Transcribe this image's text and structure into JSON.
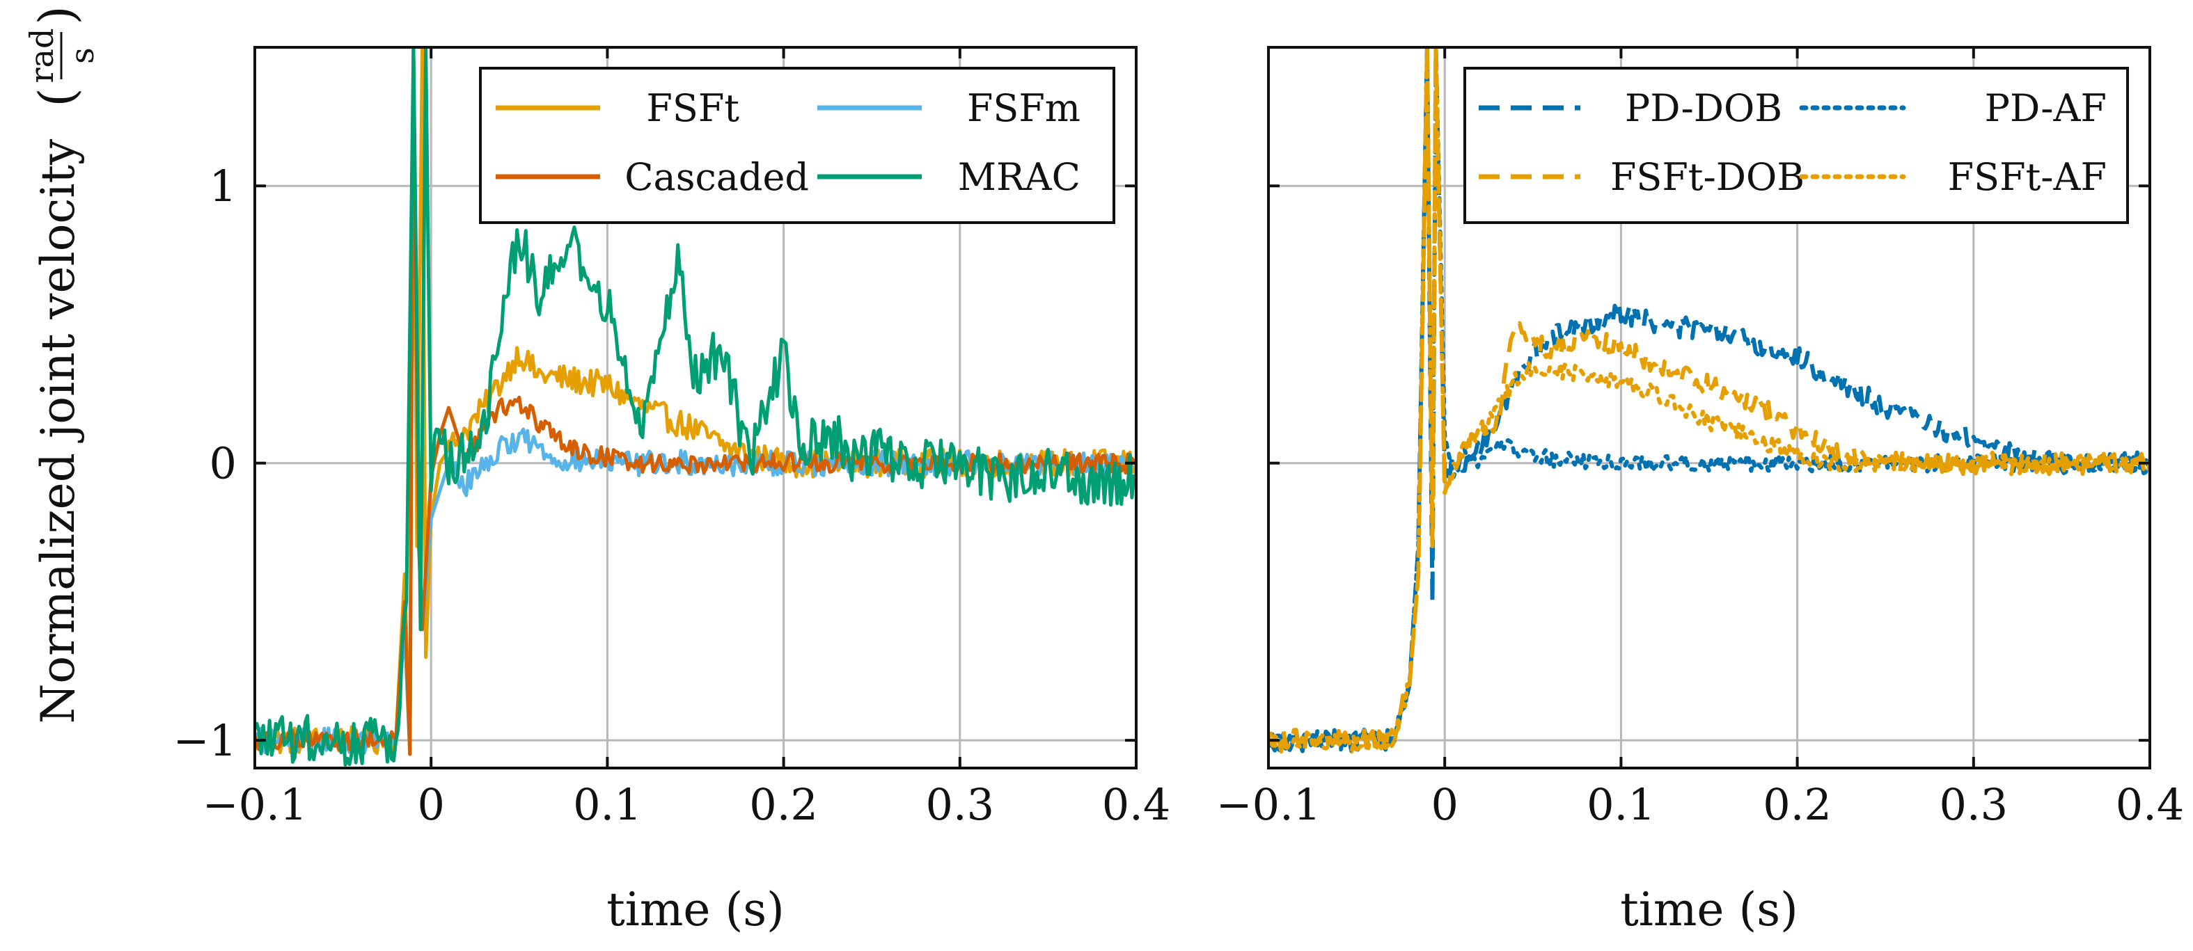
{
  "chart_data": [
    {
      "type": "line",
      "xlabel": "time (s)",
      "ylabel": "Normalized joint velocity",
      "ylabel_unit_num": "rad",
      "ylabel_unit_den": "s",
      "xlim": [
        -0.1,
        0.4
      ],
      "ylim": [
        -1.1,
        1.5
      ],
      "xticks": [
        -0.1,
        0,
        0.1,
        0.2,
        0.3,
        0.4
      ],
      "xtick_labels": [
        "−0.1",
        "0",
        "0.1",
        "0.2",
        "0.3",
        "0.4"
      ],
      "yticks": [
        -1,
        0,
        1
      ],
      "ytick_labels": [
        "−1",
        "0",
        "1"
      ],
      "grid": true,
      "legend_position": "top-right",
      "series": [
        {
          "name": "FSFt",
          "color": "#E69F00",
          "style": "solid",
          "jitter": 0.05,
          "x": [
            -0.1,
            -0.02,
            -0.015,
            -0.012,
            -0.01,
            -0.008,
            -0.005,
            -0.003,
            0,
            0.005,
            0.01,
            0.02,
            0.03,
            0.04,
            0.05,
            0.06,
            0.08,
            0.1,
            0.12,
            0.15,
            0.17,
            0.2,
            0.25,
            0.3,
            0.35,
            0.4
          ],
          "y": [
            -1.0,
            -1.0,
            -0.4,
            -1.05,
            1.5,
            -0.3,
            1.5,
            -0.7,
            -0.2,
            0.0,
            0.05,
            0.12,
            0.2,
            0.3,
            0.4,
            0.32,
            0.3,
            0.28,
            0.2,
            0.12,
            0.05,
            0.0,
            0.0,
            0.0,
            0.0,
            0.0
          ]
        },
        {
          "name": "FSFm",
          "color": "#56B4E9",
          "style": "solid",
          "jitter": 0.045,
          "x": [
            -0.1,
            -0.02,
            -0.015,
            -0.012,
            -0.01,
            -0.007,
            -0.005,
            0,
            0.005,
            0.01,
            0.02,
            0.03,
            0.04,
            0.05,
            0.07,
            0.1,
            0.15,
            0.2,
            0.25,
            0.3,
            0.35,
            0.4
          ],
          "y": [
            -1.0,
            -1.0,
            -0.6,
            -1.05,
            1.5,
            -0.2,
            -0.6,
            -0.2,
            -0.1,
            0.0,
            -0.08,
            0.0,
            0.05,
            0.1,
            0.02,
            0.0,
            0.0,
            0.0,
            0.0,
            0.0,
            0.0,
            0.0
          ]
        },
        {
          "name": "Cascaded",
          "color": "#D55E00",
          "style": "solid",
          "jitter": 0.035,
          "x": [
            -0.1,
            -0.02,
            -0.015,
            -0.012,
            -0.01,
            -0.007,
            -0.005,
            0,
            0.005,
            0.01,
            0.015,
            0.02,
            0.03,
            0.04,
            0.05,
            0.06,
            0.08,
            0.1,
            0.12,
            0.15,
            0.2,
            0.25,
            0.3,
            0.35,
            0.4
          ],
          "y": [
            -1.0,
            -1.0,
            -0.5,
            -1.05,
            1.5,
            -0.3,
            -0.6,
            -0.05,
            0.1,
            0.2,
            0.1,
            0.0,
            0.12,
            0.2,
            0.22,
            0.15,
            0.05,
            0.02,
            0.0,
            0.0,
            0.0,
            0.0,
            0.0,
            0.0,
            0.0
          ]
        },
        {
          "name": "MRAC",
          "color": "#009E73",
          "style": "solid",
          "jitter": 0.09,
          "x": [
            -0.1,
            -0.02,
            -0.014,
            -0.01,
            -0.006,
            -0.003,
            0,
            0.003,
            0.01,
            0.02,
            0.03,
            0.04,
            0.05,
            0.06,
            0.07,
            0.08,
            0.09,
            0.1,
            0.11,
            0.12,
            0.13,
            0.14,
            0.15,
            0.16,
            0.17,
            0.18,
            0.19,
            0.2,
            0.21,
            0.22,
            0.23,
            0.24,
            0.25,
            0.27,
            0.3,
            0.32,
            0.34,
            0.35,
            0.37,
            0.4
          ],
          "y": [
            -1.0,
            -1.0,
            -0.5,
            1.5,
            -0.6,
            1.5,
            -0.1,
            0.2,
            0.0,
            0.05,
            0.1,
            0.5,
            0.85,
            0.6,
            0.75,
            0.8,
            0.55,
            0.6,
            0.3,
            0.15,
            0.5,
            0.7,
            0.3,
            0.4,
            0.3,
            0.0,
            0.2,
            0.4,
            0.05,
            0.1,
            0.1,
            0.0,
            0.05,
            0.0,
            0.0,
            -0.05,
            -0.05,
            0.0,
            -0.08,
            -0.05
          ]
        }
      ]
    },
    {
      "type": "line",
      "xlabel": "time (s)",
      "xlim": [
        -0.1,
        0.4
      ],
      "ylim": [
        -1.1,
        1.5
      ],
      "xticks": [
        -0.1,
        0,
        0.1,
        0.2,
        0.3,
        0.4
      ],
      "xtick_labels": [
        "−0.1",
        "0",
        "0.1",
        "0.2",
        "0.3",
        "0.4"
      ],
      "yticks": [
        -1,
        0,
        1
      ],
      "grid": true,
      "legend_position": "top-right",
      "series": [
        {
          "name": "PD-DOB",
          "color": "#0072B2",
          "style": "dashed",
          "jitter": 0.04,
          "x": [
            -0.1,
            -0.03,
            -0.02,
            -0.015,
            -0.01,
            -0.007,
            -0.005,
            0,
            0.01,
            0.02,
            0.03,
            0.04,
            0.05,
            0.06,
            0.08,
            0.1,
            0.12,
            0.15,
            0.18,
            0.2,
            0.25,
            0.3,
            0.33,
            0.35,
            0.4
          ],
          "y": [
            -1.0,
            -1.0,
            -0.8,
            -0.3,
            1.5,
            -0.5,
            1.5,
            -0.05,
            0.0,
            0.05,
            0.15,
            0.3,
            0.4,
            0.45,
            0.5,
            0.55,
            0.5,
            0.48,
            0.42,
            0.38,
            0.2,
            0.08,
            0.02,
            0.0,
            0.0
          ]
        },
        {
          "name": "PD-AF",
          "color": "#0072B2",
          "style": "dotted",
          "jitter": 0.03,
          "x": [
            -0.1,
            -0.03,
            -0.02,
            -0.015,
            -0.01,
            -0.007,
            -0.005,
            0,
            0.005,
            0.01,
            0.02,
            0.03,
            0.05,
            0.1,
            0.15,
            0.2,
            0.25,
            0.3,
            0.35,
            0.4
          ],
          "y": [
            -1.0,
            -1.0,
            -0.8,
            -0.3,
            1.5,
            -0.3,
            1.5,
            0.1,
            -0.05,
            0.05,
            0.0,
            0.08,
            0.02,
            0.0,
            0.0,
            0.0,
            0.0,
            0.0,
            0.0,
            0.0
          ]
        },
        {
          "name": "FSFt-DOB",
          "color": "#E69F00",
          "style": "dashed",
          "jitter": 0.04,
          "x": [
            -0.1,
            -0.03,
            -0.02,
            -0.015,
            -0.01,
            -0.007,
            -0.005,
            0,
            0.01,
            0.02,
            0.03,
            0.04,
            0.05,
            0.06,
            0.08,
            0.1,
            0.12,
            0.15,
            0.18,
            0.2,
            0.22,
            0.25,
            0.3,
            0.35,
            0.4
          ],
          "y": [
            -1.0,
            -1.0,
            -0.8,
            -0.4,
            1.5,
            -0.3,
            1.5,
            -0.1,
            0.05,
            0.12,
            0.15,
            0.5,
            0.45,
            0.4,
            0.45,
            0.42,
            0.35,
            0.28,
            0.2,
            0.12,
            0.05,
            0.0,
            0.0,
            0.0,
            0.0
          ]
        },
        {
          "name": "FSFt-AF",
          "color": "#E69F00",
          "style": "dotted",
          "jitter": 0.03,
          "x": [
            -0.1,
            -0.03,
            -0.02,
            -0.015,
            -0.01,
            -0.007,
            -0.005,
            0,
            0.01,
            0.02,
            0.04,
            0.05,
            0.08,
            0.1,
            0.12,
            0.15,
            0.18,
            0.2,
            0.22,
            0.25,
            0.3,
            0.35,
            0.4
          ],
          "y": [
            -1.0,
            -1.0,
            -0.8,
            -0.4,
            1.5,
            -0.3,
            1.5,
            -0.1,
            0.05,
            0.1,
            0.3,
            0.35,
            0.32,
            0.3,
            0.25,
            0.15,
            0.08,
            0.03,
            0.0,
            0.0,
            0.0,
            0.0,
            0.0
          ]
        }
      ]
    }
  ]
}
